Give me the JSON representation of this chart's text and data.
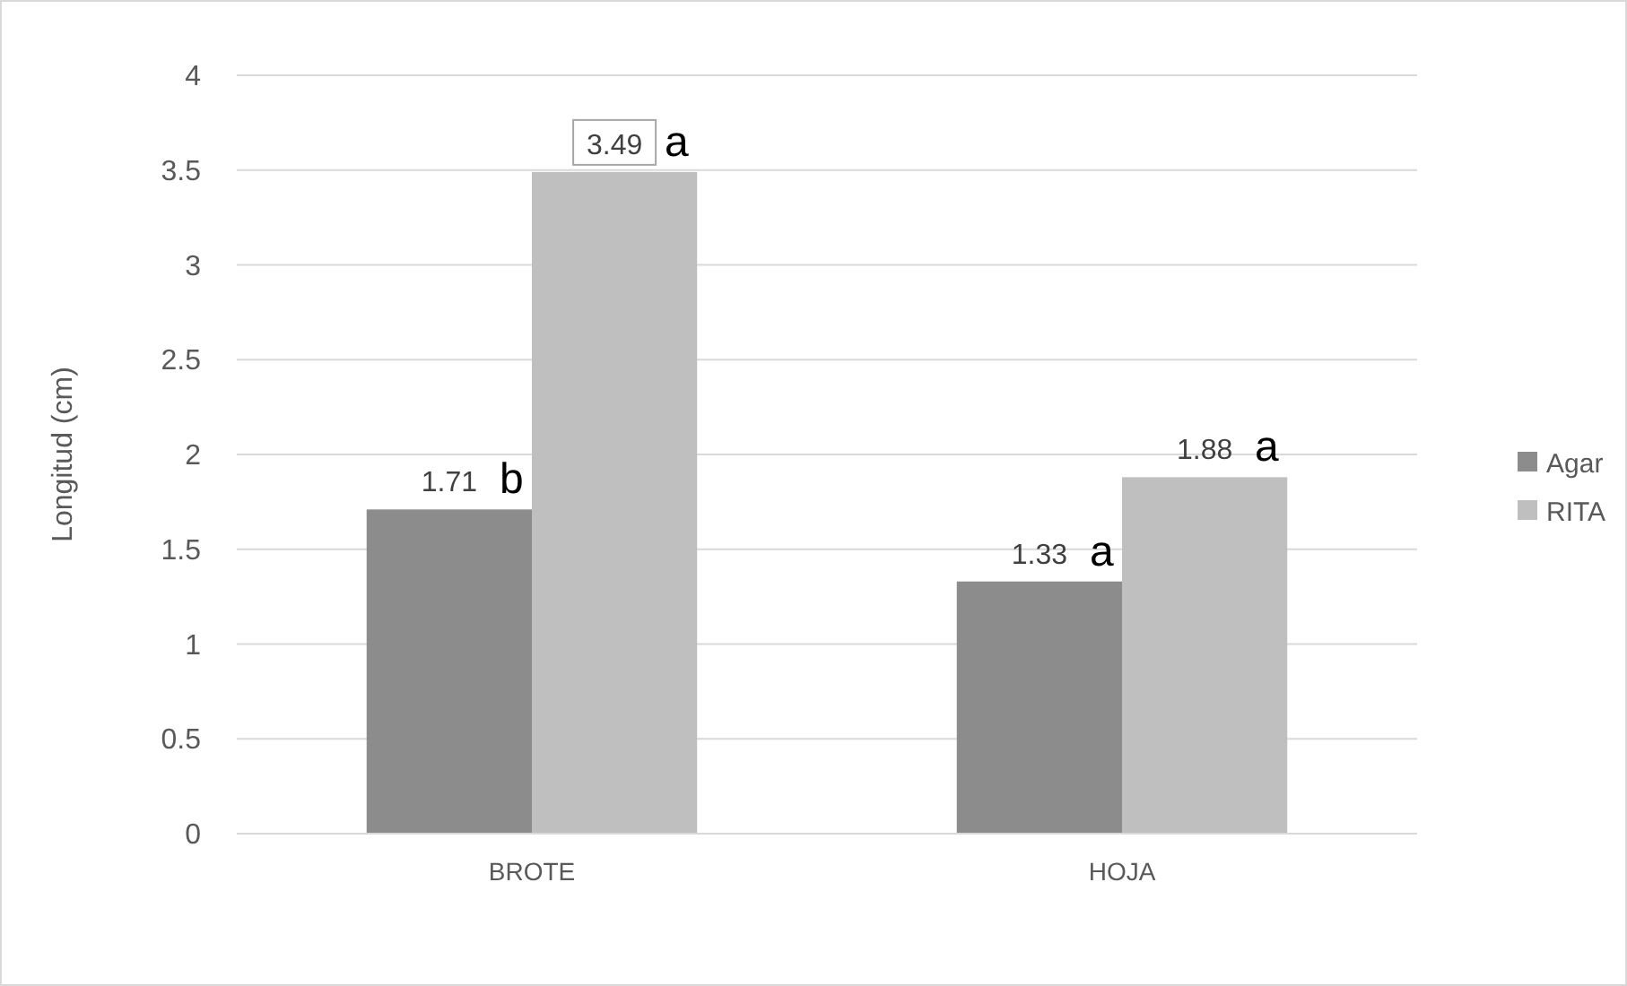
{
  "chart_data": {
    "type": "bar",
    "ylabel": "Longitud (cm)",
    "categories": [
      "BROTE",
      "HOJA"
    ],
    "series": [
      {
        "name": "Agar",
        "color": "#8c8c8c",
        "values": [
          1.71,
          1.33
        ]
      },
      {
        "name": "RITA",
        "color": "#bfbfbf",
        "values": [
          3.49,
          1.88
        ]
      }
    ],
    "ylim": [
      0,
      4
    ],
    "yticks": [
      0,
      0.5,
      1,
      1.5,
      2,
      2.5,
      3,
      3.5,
      4
    ],
    "grid": "y",
    "legend": "right",
    "data_labels": true,
    "annotations": [
      "b",
      "a",
      "a",
      "a"
    ]
  }
}
